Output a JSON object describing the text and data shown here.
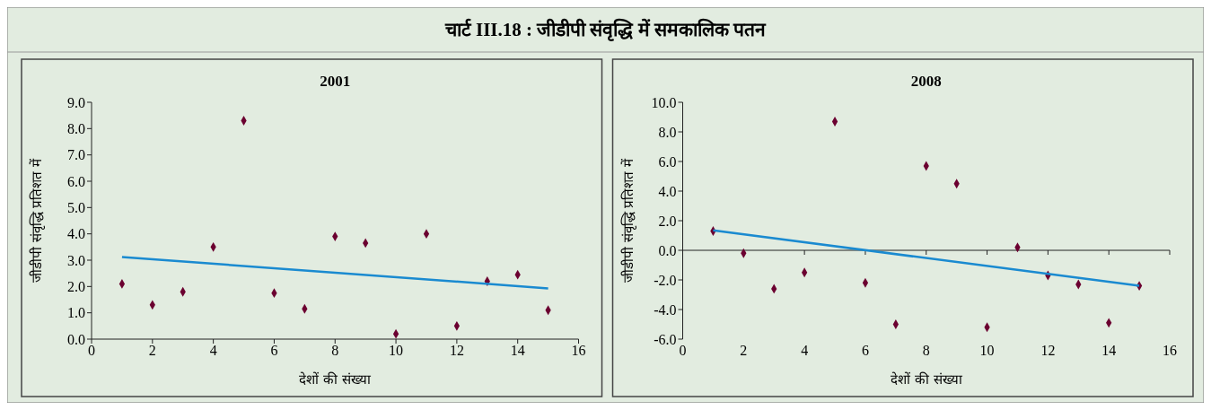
{
  "chart_data": [
    {
      "type": "scatter",
      "title": "चार्ट III.18 : जीडीपी संवृद्धि में समकालिक पतन",
      "subtitle": "2001",
      "xlabel": "देशों की संख्या",
      "ylabel": "जीडीपी संवृद्धि प्रतिशत में",
      "xlim": [
        0,
        16
      ],
      "xticks": [
        0,
        2,
        4,
        6,
        8,
        10,
        12,
        14,
        16
      ],
      "ylim": [
        0,
        9
      ],
      "yticks": [
        {
          "value": 0,
          "label": "0.0"
        },
        {
          "value": 1,
          "label": "1.0"
        },
        {
          "value": 2,
          "label": "2.0"
        },
        {
          "value": 3,
          "label": "3.0"
        },
        {
          "value": 4,
          "label": "4.0"
        },
        {
          "value": 5,
          "label": "5.0"
        },
        {
          "value": 6,
          "label": "6.0"
        },
        {
          "value": 7,
          "label": "7.0"
        },
        {
          "value": 8,
          "label": "8.0"
        },
        {
          "value": 9,
          "label": "9.0"
        }
      ],
      "series": [
        {
          "marker": "diamond",
          "color": "#6b0030",
          "x": [
            1,
            2,
            3,
            4,
            5,
            6,
            7,
            8,
            9,
            10,
            11,
            12,
            13,
            14,
            15
          ],
          "values": [
            2.1,
            1.3,
            1.8,
            3.5,
            8.3,
            1.75,
            1.15,
            3.9,
            3.65,
            0.2,
            4.0,
            0.5,
            2.2,
            2.45,
            1.1
          ]
        },
        {
          "type": "line",
          "color": "#1a8ad0",
          "x": [
            1,
            15
          ],
          "values": [
            3.12,
            1.93
          ]
        }
      ]
    },
    {
      "type": "scatter",
      "title": "2008",
      "xlabel": "देशों की संख्या",
      "ylabel": "जीडीपी संवृद्धि प्रतिशत में",
      "xlim": [
        0,
        16
      ],
      "xticks": [
        0,
        2,
        4,
        6,
        8,
        10,
        12,
        14,
        16
      ],
      "ylim": [
        -6,
        10
      ],
      "yticks": [
        {
          "value": -6,
          "label": "-6.0"
        },
        {
          "value": -4,
          "label": "-4.0"
        },
        {
          "value": -2,
          "label": "-2.0"
        },
        {
          "value": 0,
          "label": "0.0"
        },
        {
          "value": 2,
          "label": "2.0"
        },
        {
          "value": 4,
          "label": "4.0"
        },
        {
          "value": 6,
          "label": "6.0"
        },
        {
          "value": 8,
          "label": "8.0"
        },
        {
          "value": 10,
          "label": "10.0"
        }
      ],
      "series": [
        {
          "marker": "diamond",
          "color": "#6b0030",
          "x": [
            1,
            2,
            3,
            4,
            5,
            6,
            7,
            8,
            9,
            10,
            11,
            12,
            13,
            14,
            15
          ],
          "values": [
            1.3,
            -0.2,
            -2.6,
            -1.5,
            8.7,
            -2.2,
            -5.0,
            5.7,
            4.5,
            -5.2,
            0.2,
            -1.7,
            -2.3,
            -4.9,
            -2.4
          ]
        },
        {
          "type": "line",
          "color": "#1a8ad0",
          "x": [
            1,
            15
          ],
          "values": [
            1.35,
            -2.4
          ]
        }
      ]
    }
  ]
}
